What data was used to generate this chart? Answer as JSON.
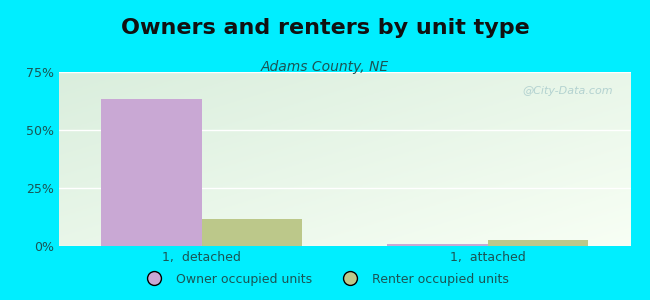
{
  "title": "Owners and renters by unit type",
  "subtitle": "Adams County, NE",
  "categories": [
    "1,  detached",
    "1,  attached"
  ],
  "owner_values": [
    63.5,
    0.8
  ],
  "renter_values": [
    11.5,
    2.5
  ],
  "owner_color": "#c9a8d4",
  "renter_color": "#bcc88a",
  "ylim": [
    0,
    75
  ],
  "yticks": [
    0,
    25,
    50,
    75
  ],
  "ytick_labels": [
    "0%",
    "25%",
    "50%",
    "75%"
  ],
  "background_outer": "#00eeff",
  "bar_width": 0.35,
  "legend_labels": [
    "Owner occupied units",
    "Renter occupied units"
  ],
  "title_fontsize": 16,
  "subtitle_fontsize": 10,
  "watermark": "@City-Data.com",
  "text_color": "#1a5555"
}
